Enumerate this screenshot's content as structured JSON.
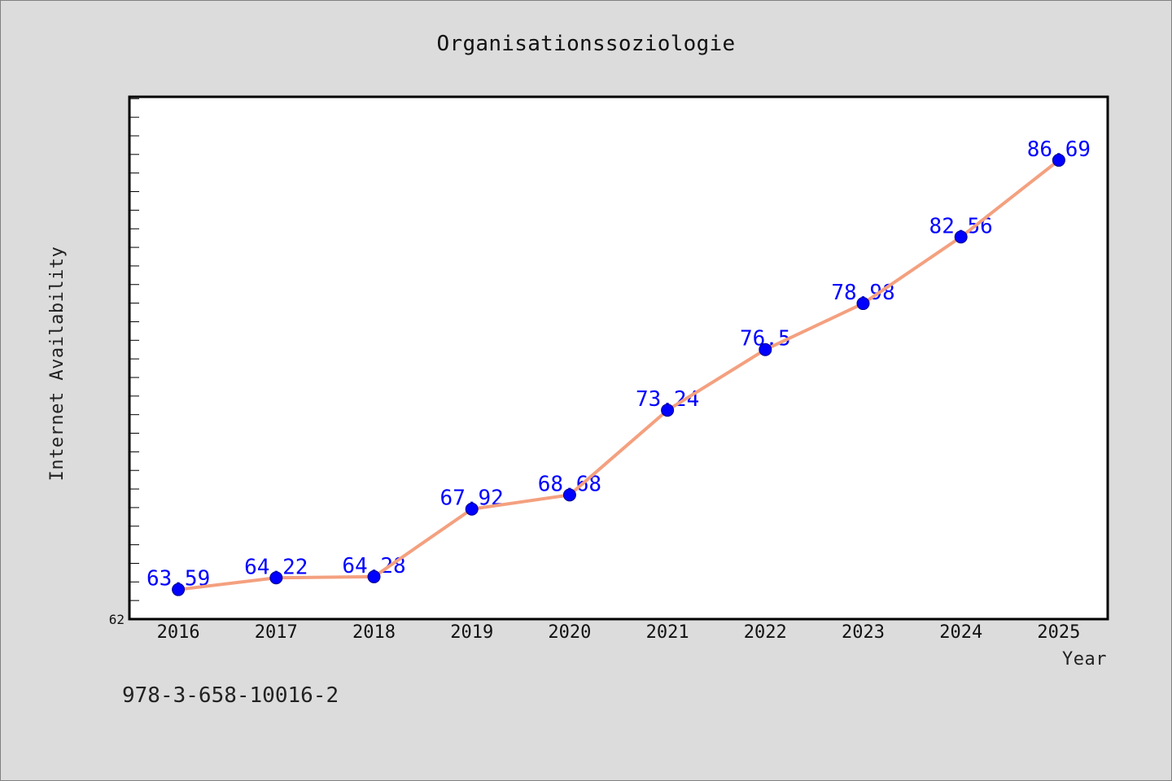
{
  "chart_data": {
    "type": "line",
    "title": "Organisationssoziologie",
    "xlabel": "Year",
    "ylabel": "Internet Availability",
    "categories": [
      "2016",
      "2017",
      "2018",
      "2019",
      "2020",
      "2021",
      "2022",
      "2023",
      "2024",
      "2025"
    ],
    "series": [
      {
        "values": [
          63.59,
          64.22,
          64.28,
          67.92,
          68.68,
          73.24,
          76.5,
          78.98,
          82.56,
          86.69
        ]
      }
    ],
    "ylim": [
      62,
      90.1
    ],
    "yticks": [
      62
    ],
    "y_minor_tick_step": 1,
    "data_labels_shown": true,
    "grid": false,
    "legend": "none",
    "colors": {
      "line": "#f4a07f",
      "marker": "#0000ff",
      "marker_edge": "#00008b",
      "data_label": "#0000ff",
      "plot_background": "#ffffff",
      "figure_background": "#dcdcdc"
    }
  },
  "footer": {
    "text": "978-3-658-10016-2"
  }
}
